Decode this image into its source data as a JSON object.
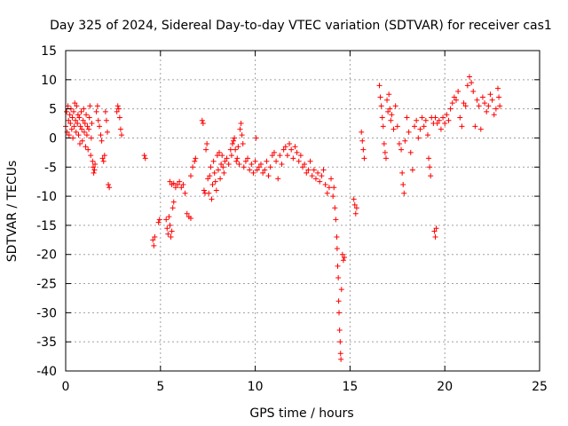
{
  "chart_data": {
    "type": "scatter",
    "title": "Day 325 of 2024, Sidereal Day-to-day VTEC variation (SDTVAR) for receiver cas1",
    "xlabel": "GPS time / hours",
    "ylabel": "SDTVAR / TECUs",
    "xlim": [
      0,
      25
    ],
    "ylim": [
      -40,
      15
    ],
    "xticks": [
      0,
      5,
      10,
      15,
      20,
      25
    ],
    "xtick_labels": [
      "0",
      "5",
      "10",
      "15",
      "20",
      "25"
    ],
    "yticks": [
      15,
      10,
      5,
      0,
      -5,
      -10,
      -15,
      -20,
      -25,
      -30,
      -35,
      -40
    ],
    "ytick_labels": [
      "15",
      "10",
      "5",
      "0",
      "-5",
      "-10",
      "-15",
      "-20",
      "-25",
      "-30",
      "-35",
      "-40"
    ],
    "grid": true,
    "marker": "plus",
    "color": "#ff0000",
    "series": [
      {
        "name": "cas1",
        "points": [
          [
            0.0,
            2.0
          ],
          [
            0.05,
            4.5
          ],
          [
            0.08,
            1.0
          ],
          [
            0.12,
            5.5
          ],
          [
            0.15,
            3.0
          ],
          [
            0.18,
            0.5
          ],
          [
            0.22,
            4.0
          ],
          [
            0.25,
            2.5
          ],
          [
            0.28,
            5.0
          ],
          [
            0.32,
            1.5
          ],
          [
            0.35,
            3.5
          ],
          [
            0.38,
            0.0
          ],
          [
            0.42,
            4.5
          ],
          [
            0.45,
            2.0
          ],
          [
            0.48,
            6.0
          ],
          [
            0.52,
            3.0
          ],
          [
            0.55,
            1.0
          ],
          [
            0.58,
            5.5
          ],
          [
            0.62,
            2.5
          ],
          [
            0.65,
            4.0
          ],
          [
            0.68,
            0.5
          ],
          [
            0.72,
            3.5
          ],
          [
            0.75,
            -1.0
          ],
          [
            0.78,
            2.0
          ],
          [
            0.82,
            4.5
          ],
          [
            0.85,
            1.5
          ],
          [
            0.88,
            -0.5
          ],
          [
            0.92,
            3.0
          ],
          [
            0.95,
            5.0
          ],
          [
            0.98,
            1.0
          ],
          [
            1.02,
            2.5
          ],
          [
            1.05,
            -1.5
          ],
          [
            1.08,
            4.0
          ],
          [
            1.12,
            0.5
          ],
          [
            1.15,
            2.0
          ],
          [
            1.18,
            -2.0
          ],
          [
            1.22,
            1.5
          ],
          [
            1.25,
            3.5
          ],
          [
            1.28,
            5.5
          ],
          [
            1.32,
            -3.0
          ],
          [
            1.35,
            0.0
          ],
          [
            1.38,
            2.5
          ],
          [
            1.42,
            -4.0
          ],
          [
            1.45,
            -5.0
          ],
          [
            1.48,
            -6.0
          ],
          [
            1.52,
            -5.5
          ],
          [
            1.55,
            -4.5
          ],
          [
            1.62,
            4.5
          ],
          [
            1.68,
            5.5
          ],
          [
            1.72,
            3.0
          ],
          [
            1.78,
            2.0
          ],
          [
            1.85,
            0.5
          ],
          [
            1.9,
            -0.5
          ],
          [
            1.95,
            -3.5
          ],
          [
            2.0,
            -4.0
          ],
          [
            2.05,
            -3.0
          ],
          [
            2.1,
            4.5
          ],
          [
            2.15,
            3.0
          ],
          [
            2.2,
            1.0
          ],
          [
            2.25,
            -8.0
          ],
          [
            2.3,
            -8.5
          ],
          [
            2.7,
            4.5
          ],
          [
            2.75,
            5.5
          ],
          [
            2.8,
            5.0
          ],
          [
            2.85,
            3.5
          ],
          [
            2.9,
            1.5
          ],
          [
            2.95,
            0.5
          ],
          [
            4.15,
            -3.0
          ],
          [
            4.2,
            -3.5
          ],
          [
            4.6,
            -17.5
          ],
          [
            4.65,
            -18.5
          ],
          [
            4.7,
            -17.0
          ],
          [
            4.9,
            -14.5
          ],
          [
            4.95,
            -14.0
          ],
          [
            5.3,
            -14.0
          ],
          [
            5.35,
            -15.5
          ],
          [
            5.4,
            -16.5
          ],
          [
            5.45,
            -13.5
          ],
          [
            5.5,
            -15.0
          ],
          [
            5.55,
            -17.0
          ],
          [
            5.6,
            -16.0
          ],
          [
            5.65,
            -12.0
          ],
          [
            5.7,
            -11.0
          ],
          [
            5.5,
            -7.5
          ],
          [
            5.6,
            -8.0
          ],
          [
            5.7,
            -7.8
          ],
          [
            5.8,
            -8.5
          ],
          [
            5.9,
            -8.0
          ],
          [
            6.0,
            -7.5
          ],
          [
            6.1,
            -8.5
          ],
          [
            6.2,
            -8.0
          ],
          [
            6.3,
            -9.5
          ],
          [
            6.4,
            -13.0
          ],
          [
            6.5,
            -13.5
          ],
          [
            6.6,
            -13.8
          ],
          [
            6.6,
            -6.5
          ],
          [
            6.7,
            -5.0
          ],
          [
            6.8,
            -4.0
          ],
          [
            6.85,
            -3.5
          ],
          [
            7.2,
            3.0
          ],
          [
            7.25,
            2.5
          ],
          [
            7.3,
            -9.0
          ],
          [
            7.35,
            -9.5
          ],
          [
            7.4,
            -2.0
          ],
          [
            7.45,
            -1.0
          ],
          [
            7.5,
            -7.0
          ],
          [
            7.55,
            -9.5
          ],
          [
            7.6,
            -6.5
          ],
          [
            7.65,
            -5.0
          ],
          [
            7.7,
            -10.5
          ],
          [
            7.75,
            -8.0
          ],
          [
            7.8,
            -4.0
          ],
          [
            7.85,
            -6.0
          ],
          [
            7.9,
            -7.5
          ],
          [
            7.95,
            -9.0
          ],
          [
            8.0,
            -3.0
          ],
          [
            8.05,
            -5.5
          ],
          [
            8.1,
            -2.5
          ],
          [
            8.15,
            -7.0
          ],
          [
            8.2,
            -4.5
          ],
          [
            8.25,
            -3.0
          ],
          [
            8.3,
            -5.0
          ],
          [
            8.35,
            -6.0
          ],
          [
            8.4,
            -4.0
          ],
          [
            8.5,
            -3.5
          ],
          [
            8.6,
            -4.5
          ],
          [
            8.7,
            -2.0
          ],
          [
            8.75,
            -3.0
          ],
          [
            8.8,
            -1.0
          ],
          [
            8.85,
            -0.5
          ],
          [
            8.9,
            0.0
          ],
          [
            8.95,
            -2.0
          ],
          [
            9.0,
            -4.0
          ],
          [
            9.05,
            -3.5
          ],
          [
            9.1,
            -1.5
          ],
          [
            9.15,
            -4.5
          ],
          [
            9.2,
            1.5
          ],
          [
            9.25,
            2.5
          ],
          [
            9.3,
            0.5
          ],
          [
            9.35,
            -1.0
          ],
          [
            9.4,
            -5.0
          ],
          [
            9.5,
            -4.0
          ],
          [
            9.6,
            -3.5
          ],
          [
            9.7,
            -5.5
          ],
          [
            9.8,
            -4.5
          ],
          [
            9.9,
            -6.0
          ],
          [
            10.0,
            -4.0
          ],
          [
            10.05,
            0.0
          ],
          [
            10.1,
            -5.5
          ],
          [
            10.2,
            -5.0
          ],
          [
            10.3,
            -4.5
          ],
          [
            10.4,
            -6.0
          ],
          [
            10.5,
            -5.5
          ],
          [
            10.6,
            -4.0
          ],
          [
            10.7,
            -6.5
          ],
          [
            10.8,
            -5.0
          ],
          [
            10.9,
            -3.0
          ],
          [
            11.0,
            -2.5
          ],
          [
            11.1,
            -4.0
          ],
          [
            11.2,
            -7.0
          ],
          [
            11.3,
            -3.0
          ],
          [
            11.4,
            -4.5
          ],
          [
            11.5,
            -2.0
          ],
          [
            11.6,
            -1.5
          ],
          [
            11.7,
            -3.0
          ],
          [
            11.8,
            -1.0
          ],
          [
            11.9,
            -2.0
          ],
          [
            12.0,
            -3.5
          ],
          [
            12.1,
            -1.5
          ],
          [
            12.2,
            -2.5
          ],
          [
            12.3,
            -4.0
          ],
          [
            12.4,
            -3.0
          ],
          [
            12.5,
            -5.0
          ],
          [
            12.6,
            -4.5
          ],
          [
            12.7,
            -6.0
          ],
          [
            12.8,
            -5.5
          ],
          [
            12.9,
            -4.0
          ],
          [
            13.0,
            -6.5
          ],
          [
            13.1,
            -5.5
          ],
          [
            13.2,
            -7.0
          ],
          [
            13.3,
            -6.0
          ],
          [
            13.4,
            -7.5
          ],
          [
            13.5,
            -6.5
          ],
          [
            13.6,
            -5.5
          ],
          [
            13.7,
            -8.0
          ],
          [
            13.8,
            -9.5
          ],
          [
            13.9,
            -8.5
          ],
          [
            14.0,
            -7.0
          ],
          [
            14.1,
            -10.0
          ],
          [
            14.15,
            -8.5
          ],
          [
            14.2,
            -12.0
          ],
          [
            14.25,
            -14.0
          ],
          [
            14.3,
            -17.0
          ],
          [
            14.32,
            -19.0
          ],
          [
            14.35,
            -22.0
          ],
          [
            14.38,
            -24.0
          ],
          [
            14.4,
            -28.0
          ],
          [
            14.42,
            -30.0
          ],
          [
            14.45,
            -33.0
          ],
          [
            14.48,
            -35.0
          ],
          [
            14.5,
            -37.0
          ],
          [
            14.52,
            -38.0
          ],
          [
            14.55,
            -26.0
          ],
          [
            14.6,
            -20.0
          ],
          [
            14.65,
            -21.0
          ],
          [
            14.7,
            -20.5
          ],
          [
            15.2,
            -10.5
          ],
          [
            15.25,
            -11.5
          ],
          [
            15.3,
            -13.0
          ],
          [
            15.35,
            -12.0
          ],
          [
            15.6,
            1.0
          ],
          [
            15.65,
            -0.5
          ],
          [
            15.7,
            -2.0
          ],
          [
            15.75,
            -3.5
          ],
          [
            16.55,
            9.0
          ],
          [
            16.6,
            7.0
          ],
          [
            16.65,
            5.5
          ],
          [
            16.7,
            3.5
          ],
          [
            16.75,
            2.0
          ],
          [
            16.8,
            -1.0
          ],
          [
            16.85,
            -2.5
          ],
          [
            16.9,
            -3.5
          ],
          [
            16.95,
            6.5
          ],
          [
            17.0,
            4.5
          ],
          [
            17.05,
            7.5
          ],
          [
            17.1,
            5.0
          ],
          [
            17.15,
            3.0
          ],
          [
            17.2,
            4.0
          ],
          [
            17.3,
            1.5
          ],
          [
            17.4,
            5.5
          ],
          [
            17.5,
            2.0
          ],
          [
            17.6,
            -1.0
          ],
          [
            17.7,
            -2.0
          ],
          [
            17.75,
            -6.0
          ],
          [
            17.8,
            -8.0
          ],
          [
            17.85,
            -9.5
          ],
          [
            17.9,
            -0.5
          ],
          [
            18.0,
            3.5
          ],
          [
            18.1,
            1.0
          ],
          [
            18.2,
            -2.5
          ],
          [
            18.3,
            -5.5
          ],
          [
            18.4,
            2.0
          ],
          [
            18.5,
            3.0
          ],
          [
            18.6,
            0.0
          ],
          [
            18.7,
            1.5
          ],
          [
            18.8,
            3.5
          ],
          [
            18.9,
            2.0
          ],
          [
            19.0,
            3.0
          ],
          [
            19.1,
            0.5
          ],
          [
            19.15,
            -3.5
          ],
          [
            19.2,
            -5.0
          ],
          [
            19.25,
            -6.5
          ],
          [
            19.3,
            3.5
          ],
          [
            19.4,
            2.5
          ],
          [
            19.5,
            3.5
          ],
          [
            19.45,
            -16.0
          ],
          [
            19.5,
            -17.0
          ],
          [
            19.55,
            -15.5
          ],
          [
            19.6,
            2.5
          ],
          [
            19.7,
            3.0
          ],
          [
            19.8,
            1.5
          ],
          [
            19.9,
            3.5
          ],
          [
            20.0,
            2.5
          ],
          [
            20.1,
            4.0
          ],
          [
            20.2,
            3.0
          ],
          [
            20.3,
            5.0
          ],
          [
            20.4,
            6.0
          ],
          [
            20.5,
            7.0
          ],
          [
            20.6,
            6.5
          ],
          [
            20.7,
            8.0
          ],
          [
            20.8,
            3.5
          ],
          [
            20.9,
            2.0
          ],
          [
            21.0,
            6.0
          ],
          [
            21.1,
            5.5
          ],
          [
            21.2,
            9.0
          ],
          [
            21.3,
            10.5
          ],
          [
            21.4,
            9.5
          ],
          [
            21.5,
            8.0
          ],
          [
            21.6,
            2.0
          ],
          [
            21.7,
            6.5
          ],
          [
            21.8,
            5.5
          ],
          [
            21.9,
            1.5
          ],
          [
            22.0,
            7.0
          ],
          [
            22.1,
            6.0
          ],
          [
            22.2,
            4.5
          ],
          [
            22.3,
            5.5
          ],
          [
            22.4,
            7.5
          ],
          [
            22.5,
            6.5
          ],
          [
            22.6,
            4.0
          ],
          [
            22.7,
            5.0
          ],
          [
            22.8,
            8.5
          ],
          [
            22.85,
            7.0
          ],
          [
            22.9,
            5.5
          ]
        ]
      }
    ]
  }
}
